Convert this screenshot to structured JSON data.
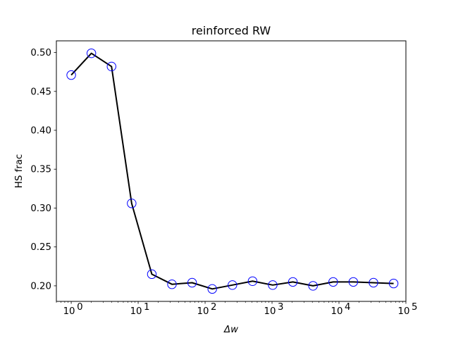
{
  "chart_data": {
    "type": "line",
    "title": "reinforced RW",
    "xlabel": "Δw",
    "ylabel": "HS frac",
    "xscale": "log",
    "xlim": [
      0.6,
      100000
    ],
    "ylim": [
      0.18,
      0.515
    ],
    "grid": false,
    "x": [
      1,
      2,
      4,
      8,
      16,
      32,
      64,
      128,
      256,
      512,
      1024,
      2048,
      4096,
      8192,
      16384,
      32768,
      65536
    ],
    "series": [
      {
        "values": [
          0.471,
          0.499,
          0.482,
          0.306,
          0.215,
          0.202,
          0.204,
          0.196,
          0.201,
          0.206,
          0.201,
          0.205,
          0.2,
          0.205,
          0.205,
          0.204,
          0.203
        ],
        "line_color": "#000000",
        "marker_color": "#0000ff",
        "marker": "open-circle"
      }
    ],
    "xticks": [
      {
        "value": 1,
        "base": "10",
        "exp": "0"
      },
      {
        "value": 10,
        "base": "10",
        "exp": "1"
      },
      {
        "value": 100,
        "base": "10",
        "exp": "2"
      },
      {
        "value": 1000,
        "base": "10",
        "exp": "3"
      },
      {
        "value": 10000,
        "base": "10",
        "exp": "4"
      },
      {
        "value": 100000,
        "base": "10",
        "exp": "5"
      }
    ],
    "yticks": [
      0.2,
      0.25,
      0.3,
      0.35,
      0.4,
      0.45,
      0.5
    ],
    "ytick_labels": [
      "0.20",
      "0.25",
      "0.30",
      "0.35",
      "0.40",
      "0.45",
      "0.50"
    ]
  }
}
